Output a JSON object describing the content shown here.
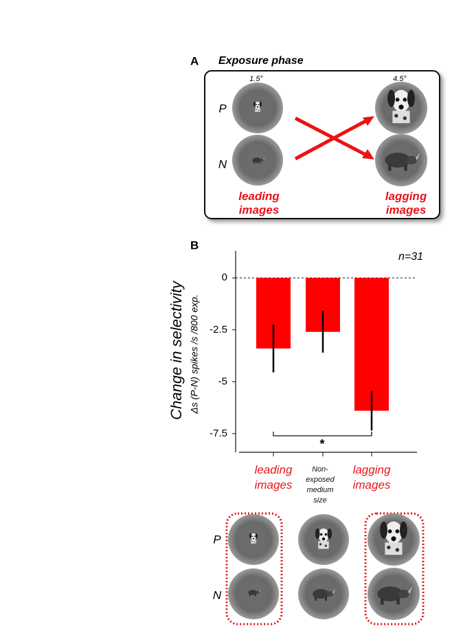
{
  "panel_a": {
    "label": "A",
    "title": "Exposure phase",
    "left_size": "1.5°",
    "right_size": "4.5°",
    "row_labels": [
      "P",
      "N"
    ],
    "leading_label": "leading\nimages",
    "lagging_label": "lagging\nimages"
  },
  "chart_data": {
    "type": "bar",
    "panel_label": "B",
    "y_label": "Change in selectivity",
    "y_sublabel": "Δs (P-N) spikes /s /800 exp.",
    "annotation": "n=31",
    "significance": "*",
    "categories": [
      "leading\nimages",
      "Non-\nexposed\nmedium\nsize",
      "lagging\nimages"
    ],
    "category_colors": [
      "#e8141b",
      "#111111",
      "#e8141b"
    ],
    "values": [
      -3.4,
      -2.6,
      -6.4
    ],
    "errors": [
      1.15,
      1.0,
      0.95
    ],
    "color": "#ff0000",
    "ylim": [
      -8.4,
      1.3
    ],
    "yticks": [
      0,
      -2.5,
      -5,
      -7.5
    ]
  },
  "panel_b_images": {
    "row_labels": [
      "P",
      "N"
    ]
  }
}
